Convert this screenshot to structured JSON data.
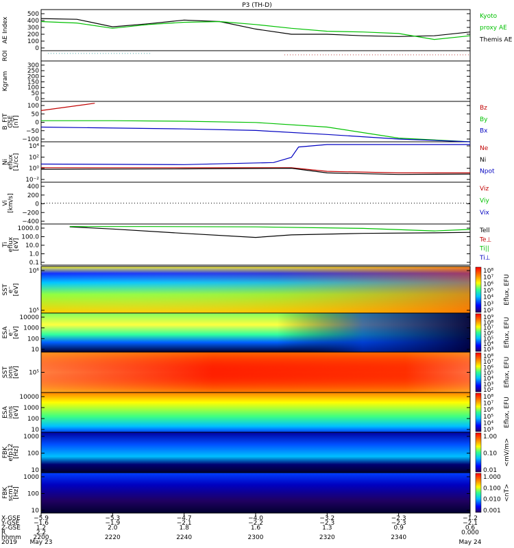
{
  "title": "P3 (TH-D)",
  "panels": [
    {
      "id": "ae",
      "ylabel": [
        "AE Index"
      ],
      "ticks": [
        "500",
        "400",
        "300",
        "200",
        "100",
        "0"
      ],
      "legend": [
        {
          "text": "Kyoto",
          "color": "#00c000"
        },
        {
          "text": "proxy AE",
          "color": "#00c000"
        },
        {
          "text": "Themis AE",
          "color": "#000000"
        }
      ]
    },
    {
      "id": "roi",
      "ylabel": [
        "ROI"
      ],
      "ticks": [],
      "legend": []
    },
    {
      "id": "kgram",
      "ylabel": [
        "Kgram"
      ],
      "ticks": [
        "300",
        "250",
        "200",
        "150",
        "100",
        "50",
        "0"
      ],
      "legend": []
    },
    {
      "id": "bfit",
      "ylabel": [
        "B_FIT",
        "GSE",
        "[nT]"
      ],
      "ticks": [
        "100",
        "50",
        "0",
        "−50",
        "−100"
      ],
      "legend": [
        {
          "text": "Bz",
          "color": "#c00000"
        },
        {
          "text": "By",
          "color": "#00c000"
        },
        {
          "text": "Bx",
          "color": "#0000c0"
        }
      ]
    },
    {
      "id": "ni",
      "ylabel": [
        "Ni",
        "eflux",
        "[1/cc]"
      ],
      "ticks": [
        "10⁴",
        "10²",
        "10⁰",
        "10⁻²"
      ],
      "legend": [
        {
          "text": "Ne",
          "color": "#c00000"
        },
        {
          "text": "Ni",
          "color": "#000000"
        },
        {
          "text": "Npot",
          "color": "#0000c0"
        }
      ]
    },
    {
      "id": "vi",
      "ylabel": [
        "Vi",
        "[km/s]"
      ],
      "ticks": [
        "400",
        "200",
        "0",
        "−200",
        "−400"
      ],
      "legend": [
        {
          "text": "Viz",
          "color": "#c00000"
        },
        {
          "text": "Viy",
          "color": "#00c000"
        },
        {
          "text": "Vix",
          "color": "#0000c0"
        }
      ]
    },
    {
      "id": "ti",
      "ylabel": [
        "Ti",
        "eflux",
        "[eV]"
      ],
      "ticks": [
        "1000.0",
        "100.0",
        "10.0",
        "1.0",
        "0.1"
      ],
      "legend": [
        {
          "text": "Tell",
          "color": "#000000"
        },
        {
          "text": "Te⊥",
          "color": "#c00000"
        },
        {
          "text": "Ti||",
          "color": "#00c000"
        },
        {
          "text": "Ti⊥",
          "color": "#0000c0"
        }
      ]
    },
    {
      "id": "sst_e",
      "ylabel": [
        "SST",
        "e⁻",
        "[eV]"
      ],
      "ticks": [
        "10⁶",
        "10⁵"
      ],
      "cb": "rainbow",
      "cbticks": [
        "10⁸",
        "10⁷",
        "10⁶",
        "10⁵",
        "10⁴",
        "10³",
        "10²"
      ],
      "cblabel": "Eflux, EFU"
    },
    {
      "id": "esa_e",
      "ylabel": [
        "ESA",
        "e⁻",
        "[eV]"
      ],
      "ticks": [
        "10000",
        "1000",
        "100",
        "10"
      ],
      "cb": "rainbow",
      "cbticks": [
        "10⁹",
        "10⁸",
        "10⁷",
        "10⁶",
        "10⁵",
        "10⁴",
        "10³"
      ],
      "cblabel": "Eflux, EFU"
    },
    {
      "id": "sst_i",
      "ylabel": [
        "SST",
        "ions",
        "[eV]"
      ],
      "ticks": [
        "10⁵"
      ],
      "cb": "rainbow",
      "cbticks": [
        "10⁸",
        "10⁷",
        "10⁶",
        "10⁵",
        "10⁴",
        "10³",
        "10²"
      ],
      "cblabel": "Eflux, EFU"
    },
    {
      "id": "esa_i",
      "ylabel": [
        "ESA",
        "ions",
        "[eV]"
      ],
      "ticks": [
        "10000",
        "1000",
        "100",
        "10"
      ],
      "cb": "rainbow",
      "cbticks": [
        "10⁸",
        "10⁷",
        "10⁶",
        "10⁵",
        "10⁴",
        "10³"
      ],
      "cblabel": "Eflux, EFU"
    },
    {
      "id": "fbk_e",
      "ylabel": [
        "FBK",
        "efp12",
        "[Hz]"
      ],
      "ticks": [
        "1000",
        "100",
        "10"
      ],
      "cb": "rainbow",
      "cbticks": [
        "1.00",
        "0.10",
        "0.01"
      ],
      "cblabel": "<mV/m>"
    },
    {
      "id": "fbk_b",
      "ylabel": [
        "FBK",
        "scm1",
        "[Hz]"
      ],
      "ticks": [
        "1000",
        "100",
        "10"
      ],
      "cb": "rainbow",
      "cbticks": [
        "1.000",
        "0.100",
        "0.010",
        "0.001"
      ],
      "cblabel": "<nT>"
    }
  ],
  "xaxis": {
    "rowlabels": [
      "X-GSE",
      "Y-GSE",
      "Z-GSE",
      "R",
      "hhmm",
      "2019"
    ],
    "columns": [
      [
        "−5.9",
        "−1.6",
        "1.2",
        "2.2",
        "2200",
        "May 23"
      ],
      [
        "−5.3",
        "−1.9",
        "2.0",
        "",
        "2220",
        ""
      ],
      [
        "−4.7",
        "−2.1",
        "1.8",
        "",
        "2240",
        ""
      ],
      [
        "−4.0",
        "−2.2",
        "1.6",
        "",
        "2300",
        ""
      ],
      [
        "−3.2",
        "−2.3",
        "1.3",
        "",
        "2320",
        ""
      ],
      [
        "−2.3",
        "−2.3",
        "0.9",
        "",
        "2340",
        ""
      ],
      [
        "−1.2",
        "−2.1",
        "0.6",
        "0.000",
        "",
        "May 24"
      ]
    ]
  },
  "chart_data": {
    "type": "line",
    "title": "P3 (TH-D)",
    "x_hhmm": [
      2200,
      2220,
      2240,
      2300,
      2320,
      2340,
      2400
    ],
    "series": [
      {
        "name": "Themis AE",
        "panel": "ae",
        "color": "#000000",
        "x": [
          2200,
          2210,
          2220,
          2230,
          2240,
          2250,
          2300,
          2310,
          2320,
          2330,
          2340,
          2350,
          2400
        ],
        "y": [
          430,
          420,
          320,
          360,
          410,
          390,
          290,
          220,
          220,
          200,
          190,
          200,
          250
        ]
      },
      {
        "name": "Kyoto proxy AE",
        "panel": "ae",
        "color": "#00c000",
        "x": [
          2200,
          2210,
          2220,
          2230,
          2240,
          2250,
          2300,
          2310,
          2320,
          2330,
          2340,
          2350,
          2400
        ],
        "y": [
          390,
          370,
          300,
          350,
          380,
          390,
          350,
          300,
          260,
          250,
          230,
          150,
          200
        ]
      },
      {
        "name": "Bz",
        "panel": "bfit",
        "color": "#c00000",
        "x": [
          2200,
          2215
        ],
        "y": [
          60,
          100
        ]
      },
      {
        "name": "By",
        "panel": "bfit",
        "color": "#00c000",
        "x": [
          2200,
          2220,
          2240,
          2300,
          2320,
          2340,
          2400
        ],
        "y": [
          5,
          5,
          2,
          -5,
          -30,
          -90,
          -110
        ]
      },
      {
        "name": "Bx",
        "panel": "bfit",
        "color": "#0000c0",
        "x": [
          2200,
          2220,
          2240,
          2300,
          2320,
          2340,
          2400
        ],
        "y": [
          -30,
          -35,
          -40,
          -48,
          -70,
          -95,
          -110
        ]
      },
      {
        "name": "Npot",
        "panel": "ni",
        "color": "#0000c0",
        "x": [
          2200,
          2240,
          2305,
          2310,
          2312,
          2320,
          2400
        ],
        "y": [
          5,
          4,
          10,
          100,
          10000,
          30000,
          30000
        ]
      },
      {
        "name": "Ne",
        "panel": "ni",
        "color": "#c00000",
        "x": [
          2200,
          2240,
          2310,
          2320,
          2340,
          2400
        ],
        "y": [
          1,
          1,
          1,
          0.2,
          0.1,
          0.1
        ]
      },
      {
        "name": "Ni",
        "panel": "ni",
        "color": "#000000",
        "x": [
          2200,
          2240,
          2310,
          2320,
          2340,
          2400
        ],
        "y": [
          0.5,
          0.6,
          0.8,
          0.1,
          0.05,
          0.06
        ]
      },
      {
        "name": "Tell",
        "panel": "ti",
        "color": "#000000",
        "x": [
          2208,
          2220,
          2240,
          2300,
          2310,
          2330,
          2350,
          2400
        ],
        "y": [
          1800,
          1000,
          300,
          100,
          200,
          300,
          350,
          400
        ]
      },
      {
        "name": "Ti||",
        "panel": "ti",
        "color": "#00c000",
        "x": [
          2208,
          2230,
          2300,
          2330,
          2350,
          2400
        ],
        "y": [
          2000,
          2000,
          1800,
          1200,
          600,
          900
        ]
      }
    ],
    "panels_units": {
      "ae": "AE Index",
      "bfit": "B_FIT GSE [nT]",
      "ni": "Ni eflux [1/cc]",
      "ti": "Ti eflux [eV]",
      "vi": "Vi [km/s]"
    }
  }
}
